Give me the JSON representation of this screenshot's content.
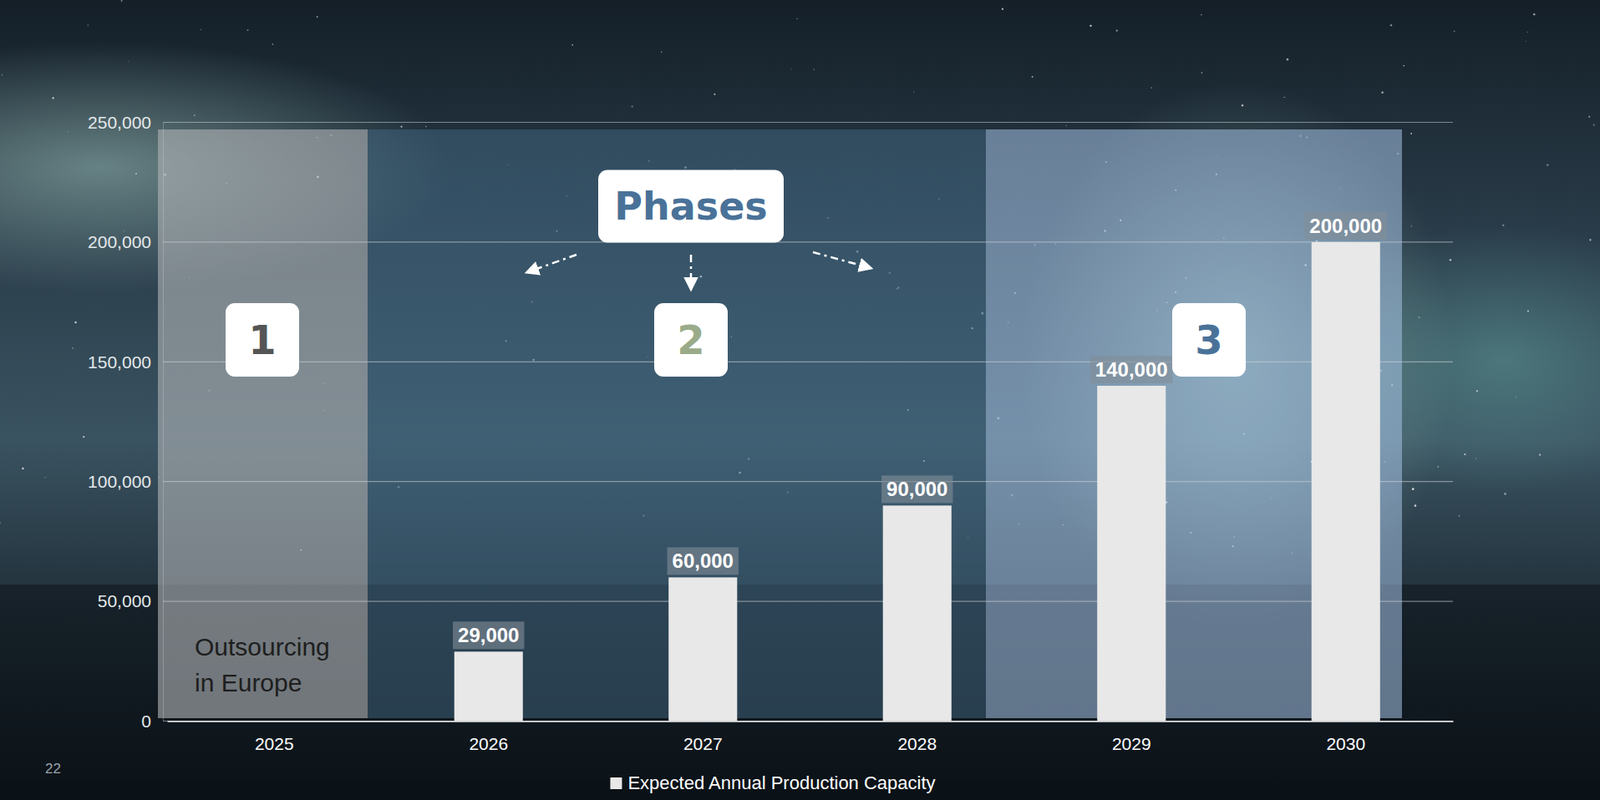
{
  "chart_data": {
    "type": "bar",
    "categories": [
      "2025",
      "2026",
      "2027",
      "2028",
      "2029",
      "2030"
    ],
    "series": [
      {
        "name": "Expected Annual Production Capacity",
        "color": "#e8e8e8",
        "values": [
          null,
          29000,
          60000,
          90000,
          140000,
          200000
        ],
        "value_labels": [
          null,
          "29,000",
          "60,000",
          "90,000",
          "140,000",
          "200,000"
        ]
      }
    ],
    "ylim": [
      0,
      250000
    ],
    "yticks": [
      0,
      {
        "value": 50000,
        "label": "50,000"
      },
      {
        "value": 100000,
        "label": "100,000"
      },
      {
        "value": 150000,
        "label": "150,000"
      },
      {
        "value": 200000,
        "label": "200,000"
      },
      {
        "value": 250000,
        "label": "250,000"
      }
    ],
    "grid": true,
    "legend": "bottom",
    "data_labels": true,
    "annotations": [
      {
        "text": "Phases"
      },
      {
        "text": "1"
      },
      {
        "text": "2"
      },
      {
        "text": "3"
      },
      {
        "text": "Outsourcing in Europe"
      },
      {
        "text": "22"
      }
    ]
  }
}
